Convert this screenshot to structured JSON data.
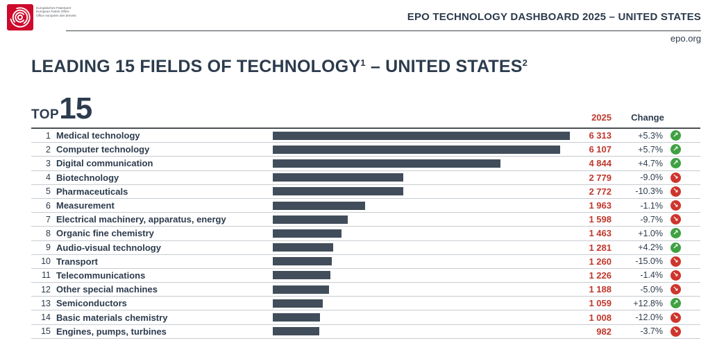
{
  "header": {
    "logo_lines": [
      "Europäisches Patentamt",
      "European Patent Office",
      "Office européen des brevets"
    ],
    "title": "EPO TECHNOLOGY DASHBOARD 2025 – UNITED STATES",
    "site_link": "epo.org"
  },
  "page": {
    "heading_main": "LEADING 15 FIELDS OF TECHNOLOGY",
    "heading_sup1": "1",
    "heading_mid": " – UNITED STATES",
    "heading_sup2": "2",
    "top_label": "TOP",
    "top_value": "15"
  },
  "columns": {
    "year": "2025",
    "change": "Change"
  },
  "colors": {
    "navy": "#2c3b4d",
    "bar": "#414d5a",
    "red": "#c0372c",
    "green": "#3fa142",
    "trend-red": "#ce352c",
    "sep": "#c7cbd1"
  },
  "chart_data": {
    "type": "bar",
    "orientation": "horizontal",
    "title": "Leading 15 fields of technology – United States",
    "value_column_label": "2025",
    "change_column_label": "Change",
    "max_value": 6313,
    "xlim": [
      0,
      6313
    ],
    "rows": [
      {
        "rank": 1,
        "label": "Medical technology",
        "value": 6313,
        "value_display": "6 313",
        "change": "+5.3%",
        "trend": "up"
      },
      {
        "rank": 2,
        "label": "Computer technology",
        "value": 6107,
        "value_display": "6 107",
        "change": "+5.7%",
        "trend": "up"
      },
      {
        "rank": 3,
        "label": "Digital communication",
        "value": 4844,
        "value_display": "4 844",
        "change": "+4.7%",
        "trend": "up"
      },
      {
        "rank": 4,
        "label": "Biotechnology",
        "value": 2779,
        "value_display": "2 779",
        "change": "-9.0%",
        "trend": "down"
      },
      {
        "rank": 5,
        "label": "Pharmaceuticals",
        "value": 2772,
        "value_display": "2 772",
        "change": "-10.3%",
        "trend": "down"
      },
      {
        "rank": 6,
        "label": "Measurement",
        "value": 1963,
        "value_display": "1 963",
        "change": "-1.1%",
        "trend": "down"
      },
      {
        "rank": 7,
        "label": "Electrical machinery, apparatus, energy",
        "value": 1598,
        "value_display": "1 598",
        "change": "-9.7%",
        "trend": "down"
      },
      {
        "rank": 8,
        "label": "Organic fine chemistry",
        "value": 1463,
        "value_display": "1 463",
        "change": "+1.0%",
        "trend": "up"
      },
      {
        "rank": 9,
        "label": "Audio-visual technology",
        "value": 1281,
        "value_display": "1 281",
        "change": "+4.2%",
        "trend": "up"
      },
      {
        "rank": 10,
        "label": "Transport",
        "value": 1260,
        "value_display": "1 260",
        "change": "-15.0%",
        "trend": "down"
      },
      {
        "rank": 11,
        "label": "Telecommunications",
        "value": 1226,
        "value_display": "1 226",
        "change": "-1.4%",
        "trend": "down"
      },
      {
        "rank": 12,
        "label": "Other special machines",
        "value": 1188,
        "value_display": "1 188",
        "change": "-5.0%",
        "trend": "down"
      },
      {
        "rank": 13,
        "label": "Semiconductors",
        "value": 1059,
        "value_display": "1 059",
        "change": "+12.8%",
        "trend": "up"
      },
      {
        "rank": 14,
        "label": "Basic materials chemistry",
        "value": 1008,
        "value_display": "1 008",
        "change": "-12.0%",
        "trend": "down"
      },
      {
        "rank": 15,
        "label": "Engines, pumps, turbines",
        "value": 982,
        "value_display": "982",
        "change": "-3.7%",
        "trend": "down"
      }
    ]
  }
}
